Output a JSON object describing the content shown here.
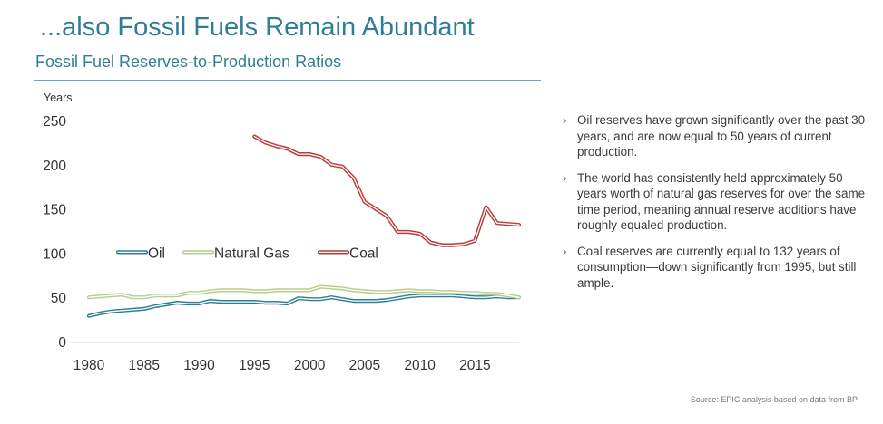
{
  "header": {
    "title": "...also Fossil Fuels Remain Abundant",
    "subtitle": "Fossil Fuel Reserves-to-Production Ratios"
  },
  "bullets": [
    {
      "mark": "›",
      "text": "Oil reserves have grown significantly over the past 30 years, and are now equal to 50 years of current production."
    },
    {
      "mark": "›",
      "text": "The world has consistently held approximately 50 years worth of natural gas reserves for over the same time period, meaning annual reserve additions have roughly equaled production."
    },
    {
      "mark": "›",
      "text": "Coal reserves are currently equal to 132 years of consumption—down significantly from 1995, but still ample."
    }
  ],
  "source": "Source: EPIC analysis based on data from BP",
  "chart_data": {
    "type": "line",
    "title": "",
    "ylabel": "Years",
    "xlabel": "",
    "xlim": [
      1980,
      2019
    ],
    "ylim": [
      0,
      250
    ],
    "xticks": [
      1980,
      1985,
      1990,
      1995,
      2000,
      2005,
      2010,
      2015
    ],
    "yticks": [
      0,
      50,
      100,
      150,
      200,
      250
    ],
    "grid": false,
    "legend_position": "center-left",
    "series": [
      {
        "name": "Oil",
        "color": "#2e7f95",
        "x": [
          1980,
          1981,
          1982,
          1983,
          1984,
          1985,
          1986,
          1987,
          1988,
          1989,
          1990,
          1991,
          1992,
          1993,
          1994,
          1995,
          1996,
          1997,
          1998,
          1999,
          2000,
          2001,
          2002,
          2003,
          2004,
          2005,
          2006,
          2007,
          2008,
          2009,
          2010,
          2011,
          2012,
          2013,
          2014,
          2015,
          2016,
          2017,
          2018,
          2019
        ],
        "values": [
          29,
          32,
          34,
          35,
          36,
          37,
          40,
          42,
          44,
          43,
          43,
          46,
          45,
          45,
          45,
          45,
          44,
          44,
          43,
          49,
          48,
          48,
          50,
          48,
          46,
          46,
          46,
          47,
          49,
          51,
          52,
          52,
          52,
          52,
          51,
          50,
          50,
          51,
          50,
          50
        ]
      },
      {
        "name": "Natural Gas",
        "color": "#b6cd8c",
        "x": [
          1980,
          1981,
          1982,
          1983,
          1984,
          1985,
          1986,
          1987,
          1988,
          1989,
          1990,
          1991,
          1992,
          1993,
          1994,
          1995,
          1996,
          1997,
          1998,
          1999,
          2000,
          2001,
          2002,
          2003,
          2004,
          2005,
          2006,
          2007,
          2008,
          2009,
          2010,
          2011,
          2012,
          2013,
          2014,
          2015,
          2016,
          2017,
          2018,
          2019
        ],
        "values": [
          50,
          51,
          52,
          53,
          50,
          50,
          52,
          52,
          52,
          55,
          55,
          57,
          58,
          58,
          58,
          57,
          57,
          58,
          58,
          58,
          58,
          62,
          61,
          60,
          58,
          57,
          56,
          56,
          57,
          58,
          57,
          57,
          56,
          56,
          55,
          55,
          54,
          54,
          52,
          50
        ]
      },
      {
        "name": "Coal",
        "color": "#b83b37",
        "x": [
          1995,
          1996,
          1997,
          1998,
          1999,
          2000,
          2001,
          2002,
          2003,
          2004,
          2005,
          2006,
          2007,
          2008,
          2009,
          2010,
          2011,
          2012,
          2013,
          2014,
          2015,
          2016,
          2017,
          2018,
          2019
        ],
        "values": [
          232,
          225,
          221,
          218,
          212,
          212,
          209,
          200,
          198,
          185,
          158,
          150,
          142,
          124,
          124,
          122,
          112,
          109,
          109,
          110,
          114,
          152,
          134,
          133,
          132
        ]
      }
    ]
  }
}
